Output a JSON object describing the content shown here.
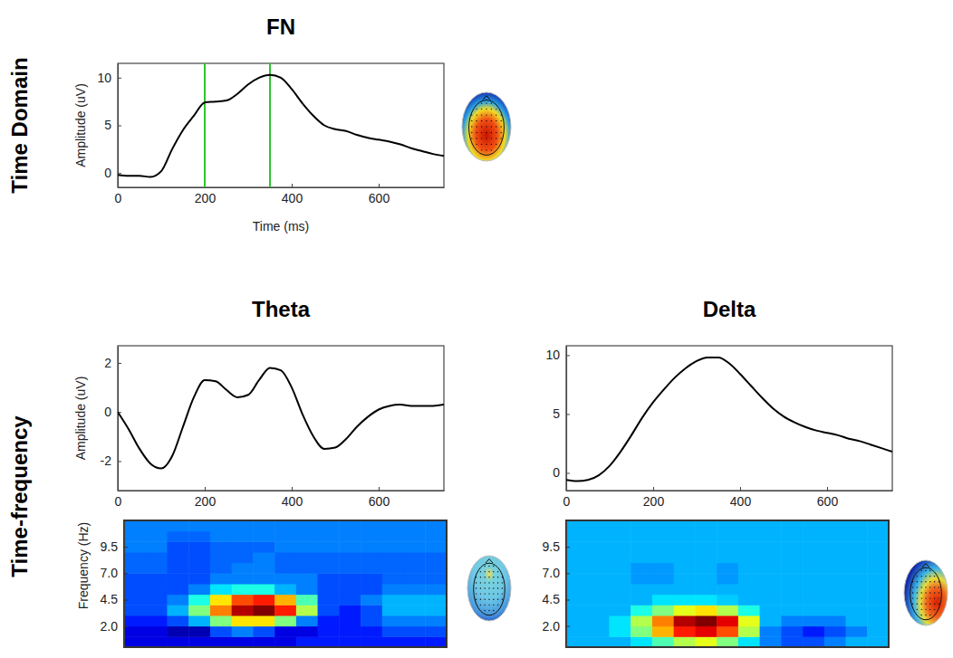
{
  "panel_rows": [
    "Time Domain",
    "Time-frequency"
  ],
  "chart_data": [
    {
      "type": "line",
      "title": "FN",
      "xlabel": "Time (ms)",
      "ylabel": "Amplitude (uV)",
      "color": "#000000",
      "x": [
        0,
        25,
        50,
        75,
        100,
        125,
        150,
        175,
        200,
        225,
        250,
        275,
        300,
        325,
        350,
        375,
        400,
        425,
        450,
        475,
        500,
        525,
        550,
        575,
        600,
        625,
        650,
        675,
        700,
        725,
        750
      ],
      "values": [
        -0.2,
        -0.3,
        -0.3,
        -0.4,
        0.2,
        2.5,
        4.5,
        6.0,
        7.4,
        7.5,
        7.6,
        8.3,
        9.3,
        10.0,
        10.3,
        10.0,
        8.8,
        7.3,
        6.0,
        5.0,
        4.6,
        4.4,
        4.0,
        3.7,
        3.5,
        3.3,
        3.0,
        2.6,
        2.3,
        2.0,
        1.8
      ],
      "vlines": [
        200,
        350
      ],
      "xlim": [
        0,
        750
      ],
      "ylim": [
        -1.5,
        11.5
      ],
      "xticks": [
        0,
        200,
        400,
        600
      ],
      "yticks": [
        0,
        5,
        10
      ]
    },
    {
      "type": "line",
      "title": "Theta",
      "ylabel": "Amplitude (uV)",
      "color": "#000000",
      "x": [
        0,
        25,
        50,
        75,
        100,
        125,
        150,
        175,
        200,
        225,
        250,
        275,
        300,
        325,
        350,
        375,
        400,
        425,
        450,
        475,
        500,
        525,
        550,
        575,
        600,
        625,
        650,
        675,
        700,
        725,
        750
      ],
      "values": [
        0,
        -0.7,
        -1.5,
        -2.1,
        -2.3,
        -1.8,
        -0.6,
        0.6,
        1.3,
        1.25,
        0.9,
        0.6,
        0.7,
        1.3,
        1.8,
        1.7,
        1.0,
        -0.1,
        -1.0,
        -1.5,
        -1.45,
        -1.1,
        -0.6,
        -0.2,
        0.1,
        0.25,
        0.3,
        0.25,
        0.25,
        0.25,
        0.3
      ],
      "xlim": [
        0,
        750
      ],
      "ylim": [
        -3.2,
        2.7
      ],
      "xticks": [
        0,
        200,
        400,
        600
      ],
      "yticks": [
        -2,
        0,
        2
      ]
    },
    {
      "type": "line",
      "title": "Delta",
      "color": "#000000",
      "x": [
        0,
        25,
        50,
        75,
        100,
        125,
        150,
        175,
        200,
        225,
        250,
        275,
        300,
        325,
        350,
        375,
        400,
        425,
        450,
        475,
        500,
        525,
        550,
        575,
        600,
        625,
        650,
        675,
        700,
        725,
        750
      ],
      "values": [
        -0.6,
        -0.7,
        -0.6,
        -0.2,
        0.6,
        1.8,
        3.2,
        4.7,
        6.0,
        7.1,
        8.1,
        8.9,
        9.5,
        9.8,
        9.8,
        9.3,
        8.4,
        7.4,
        6.4,
        5.5,
        4.8,
        4.3,
        3.9,
        3.6,
        3.4,
        3.2,
        2.9,
        2.7,
        2.4,
        2.1,
        1.8
      ],
      "xlim": [
        0,
        750
      ],
      "ylim": [
        -1.5,
        10.8
      ],
      "xticks": [
        0,
        200,
        400,
        600
      ],
      "yticks": [
        0,
        5,
        10
      ]
    },
    {
      "type": "heatmap",
      "ylabel": "Frequency (Hz)",
      "tick_labels": "y",
      "x_bins": [
        0,
        50,
        100,
        150,
        200,
        250,
        300,
        350,
        400,
        450,
        500,
        550,
        600,
        650,
        700,
        750
      ],
      "y_bins": [
        0,
        1,
        2,
        3,
        4,
        5,
        6,
        7,
        8,
        9,
        10,
        11,
        12
      ],
      "cells": [
        [
          -0.8,
          -0.8,
          -0.8,
          -0.8,
          -0.8,
          -0.8,
          -0.8,
          -0.8,
          -0.7,
          -0.7,
          -0.7,
          -0.7,
          -0.7,
          -0.7,
          -0.7
        ],
        [
          -0.8,
          -0.8,
          -0.9,
          -0.9,
          -0.6,
          -0.5,
          -0.6,
          -0.8,
          -0.8,
          -0.7,
          -0.7,
          -0.7,
          -0.6,
          -0.6,
          -0.6
        ],
        [
          -0.7,
          -0.7,
          -0.6,
          -0.4,
          0.0,
          0.3,
          0.3,
          0.0,
          -0.5,
          -0.7,
          -0.7,
          -0.6,
          -0.5,
          -0.5,
          -0.5
        ],
        [
          -0.6,
          -0.6,
          -0.4,
          0.0,
          0.5,
          0.9,
          1.0,
          0.7,
          0.1,
          -0.6,
          -0.7,
          -0.6,
          -0.4,
          -0.4,
          -0.4
        ],
        [
          -0.6,
          -0.6,
          -0.5,
          -0.2,
          0.3,
          0.6,
          0.7,
          0.4,
          -0.1,
          -0.6,
          -0.6,
          -0.5,
          -0.4,
          -0.4,
          -0.4
        ],
        [
          -0.6,
          -0.6,
          -0.6,
          -0.5,
          -0.3,
          -0.2,
          -0.2,
          -0.4,
          -0.5,
          -0.6,
          -0.6,
          -0.6,
          -0.5,
          -0.5,
          -0.5
        ],
        [
          -0.6,
          -0.6,
          -0.6,
          -0.6,
          -0.5,
          -0.5,
          -0.5,
          -0.5,
          -0.5,
          -0.6,
          -0.6,
          -0.6,
          -0.55,
          -0.55,
          -0.55
        ],
        [
          -0.55,
          -0.55,
          -0.6,
          -0.6,
          -0.55,
          -0.5,
          -0.5,
          -0.55,
          -0.55,
          -0.55,
          -0.55,
          -0.55,
          -0.55,
          -0.55,
          -0.55
        ],
        [
          -0.55,
          -0.55,
          -0.6,
          -0.6,
          -0.55,
          -0.55,
          -0.5,
          -0.55,
          -0.55,
          -0.55,
          -0.55,
          -0.55,
          -0.55,
          -0.55,
          -0.55
        ],
        [
          -0.5,
          -0.5,
          -0.6,
          -0.6,
          -0.55,
          -0.55,
          -0.55,
          -0.5,
          -0.5,
          -0.5,
          -0.5,
          -0.5,
          -0.5,
          -0.5,
          -0.5
        ],
        [
          -0.5,
          -0.5,
          -0.55,
          -0.55,
          -0.5,
          -0.5,
          -0.5,
          -0.5,
          -0.5,
          -0.5,
          -0.5,
          -0.5,
          -0.5,
          -0.5,
          -0.5
        ],
        [
          -0.5,
          -0.5,
          -0.5,
          -0.5,
          -0.5,
          -0.5,
          -0.5,
          -0.5,
          -0.5,
          -0.5,
          -0.5,
          -0.5,
          -0.5,
          -0.5,
          -0.5
        ]
      ],
      "xlim": [
        0,
        750
      ],
      "ylim": [
        0,
        12
      ],
      "zlim": [
        -1,
        1
      ],
      "yticks": [
        {
          "value": 2,
          "label": "2.0"
        },
        {
          "value": 4.5,
          "label": "4.5"
        },
        {
          "value": 7,
          "label": "7.0"
        },
        {
          "value": 9.5,
          "label": "9.5"
        }
      ]
    },
    {
      "type": "heatmap",
      "tick_labels": "y",
      "x_bins": [
        0,
        50,
        100,
        150,
        200,
        250,
        300,
        350,
        400,
        450,
        500,
        550,
        600,
        650,
        700,
        750
      ],
      "y_bins": [
        0,
        1,
        2,
        3,
        4,
        5,
        6,
        7,
        8,
        9,
        10,
        11,
        12
      ],
      "cells": [
        [
          -0.4,
          -0.4,
          -0.4,
          -0.3,
          -0.1,
          0.1,
          0.2,
          0.0,
          -0.3,
          -0.5,
          -0.6,
          -0.6,
          -0.5,
          -0.4,
          -0.4
        ],
        [
          -0.4,
          -0.4,
          -0.3,
          0.0,
          0.4,
          0.7,
          0.8,
          0.6,
          0.1,
          -0.5,
          -0.6,
          -0.7,
          -0.6,
          -0.5,
          -0.4
        ],
        [
          -0.4,
          -0.4,
          -0.3,
          0.1,
          0.5,
          0.9,
          1.0,
          0.8,
          0.2,
          -0.4,
          -0.5,
          -0.5,
          -0.5,
          -0.4,
          -0.4
        ],
        [
          -0.4,
          -0.4,
          -0.4,
          -0.2,
          0.0,
          0.2,
          0.3,
          0.1,
          -0.2,
          -0.4,
          -0.4,
          -0.4,
          -0.4,
          -0.4,
          -0.4
        ],
        [
          -0.4,
          -0.4,
          -0.4,
          -0.4,
          -0.3,
          -0.3,
          -0.3,
          -0.35,
          -0.4,
          -0.4,
          -0.4,
          -0.4,
          -0.4,
          -0.4,
          -0.4
        ],
        [
          -0.4,
          -0.4,
          -0.4,
          -0.4,
          -0.4,
          -0.4,
          -0.4,
          -0.4,
          -0.4,
          -0.4,
          -0.4,
          -0.4,
          -0.4,
          -0.4,
          -0.4
        ],
        [
          -0.4,
          -0.4,
          -0.4,
          -0.45,
          -0.45,
          -0.4,
          -0.4,
          -0.45,
          -0.4,
          -0.4,
          -0.4,
          -0.4,
          -0.4,
          -0.4,
          -0.4
        ],
        [
          -0.4,
          -0.4,
          -0.4,
          -0.45,
          -0.45,
          -0.4,
          -0.4,
          -0.45,
          -0.4,
          -0.4,
          -0.4,
          -0.4,
          -0.4,
          -0.4,
          -0.4
        ],
        [
          -0.4,
          -0.4,
          -0.4,
          -0.4,
          -0.4,
          -0.4,
          -0.4,
          -0.4,
          -0.4,
          -0.4,
          -0.4,
          -0.4,
          -0.4,
          -0.4,
          -0.4
        ],
        [
          -0.4,
          -0.4,
          -0.4,
          -0.4,
          -0.4,
          -0.4,
          -0.4,
          -0.4,
          -0.4,
          -0.4,
          -0.4,
          -0.4,
          -0.4,
          -0.4,
          -0.4
        ],
        [
          -0.4,
          -0.4,
          -0.4,
          -0.4,
          -0.4,
          -0.4,
          -0.4,
          -0.4,
          -0.4,
          -0.4,
          -0.4,
          -0.4,
          -0.4,
          -0.4,
          -0.4
        ],
        [
          -0.4,
          -0.4,
          -0.4,
          -0.4,
          -0.4,
          -0.4,
          -0.4,
          -0.4,
          -0.4,
          -0.4,
          -0.4,
          -0.4,
          -0.4,
          -0.4,
          -0.4
        ]
      ],
      "xlim": [
        0,
        750
      ],
      "ylim": [
        0,
        12
      ],
      "zlim": [
        -1,
        1
      ],
      "yticks": [
        {
          "value": 2,
          "label": "2.0"
        },
        {
          "value": 4.5,
          "label": "4.5"
        },
        {
          "value": 7,
          "label": "7.0"
        },
        {
          "value": 9.5,
          "label": "9.5"
        }
      ]
    }
  ]
}
